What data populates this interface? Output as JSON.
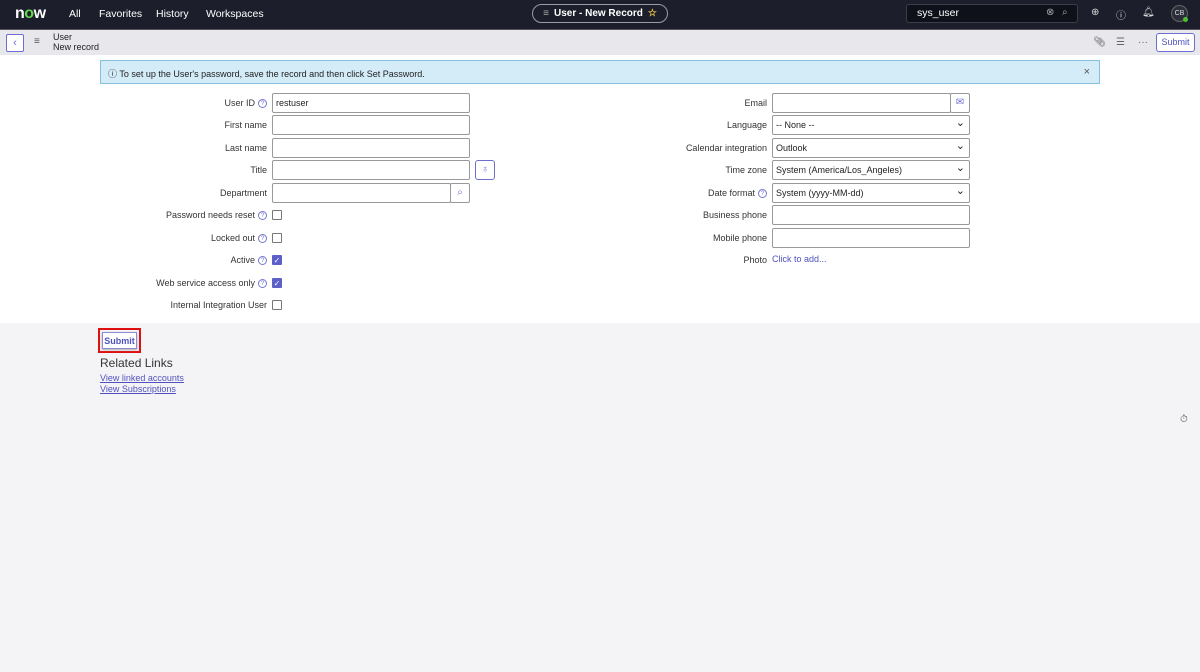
{
  "topbar": {
    "logo": "now",
    "nav": [
      "All",
      "Favorites",
      "History",
      "Workspaces"
    ],
    "record_title": "User - New Record",
    "search_value": "sys_user",
    "avatar": "CB"
  },
  "subbar": {
    "table": "User",
    "record": "New record",
    "submit": "Submit"
  },
  "banner": {
    "text": "To set up the User's password, save the record and then click Set Password."
  },
  "left_fields": [
    {
      "label": "User ID",
      "help": true,
      "type": "text",
      "value": "restuser"
    },
    {
      "label": "First name",
      "type": "text",
      "value": ""
    },
    {
      "label": "Last name",
      "type": "text",
      "value": ""
    },
    {
      "label": "Title",
      "type": "text",
      "value": ""
    },
    {
      "label": "Department",
      "type": "reference",
      "value": ""
    },
    {
      "label": "Password needs reset",
      "help": true,
      "type": "checkbox",
      "checked": false
    },
    {
      "label": "Locked out",
      "help": true,
      "type": "checkbox",
      "checked": false
    },
    {
      "label": "Active",
      "help": true,
      "type": "checkbox",
      "checked": true
    },
    {
      "label": "Web service access only",
      "help": true,
      "type": "checkbox",
      "checked": true
    },
    {
      "label": "Internal Integration User",
      "type": "checkbox",
      "checked": false
    }
  ],
  "right_fields": [
    {
      "label": "Email",
      "type": "email",
      "value": ""
    },
    {
      "label": "Language",
      "type": "select",
      "value": "-- None --"
    },
    {
      "label": "Calendar integration",
      "type": "select",
      "value": "Outlook"
    },
    {
      "label": "Time zone",
      "type": "select",
      "value": "System (America/Los_Angeles)"
    },
    {
      "label": "Date format",
      "help": true,
      "type": "select",
      "value": "System (yyyy-MM-dd)"
    },
    {
      "label": "Business phone",
      "type": "text",
      "value": ""
    },
    {
      "label": "Mobile phone",
      "type": "text",
      "value": ""
    },
    {
      "label": "Photo",
      "type": "link",
      "value": "Click to add..."
    }
  ],
  "footer": {
    "submit": "Submit",
    "related_title": "Related Links",
    "links": [
      "View linked accounts",
      "View Subscriptions"
    ]
  }
}
